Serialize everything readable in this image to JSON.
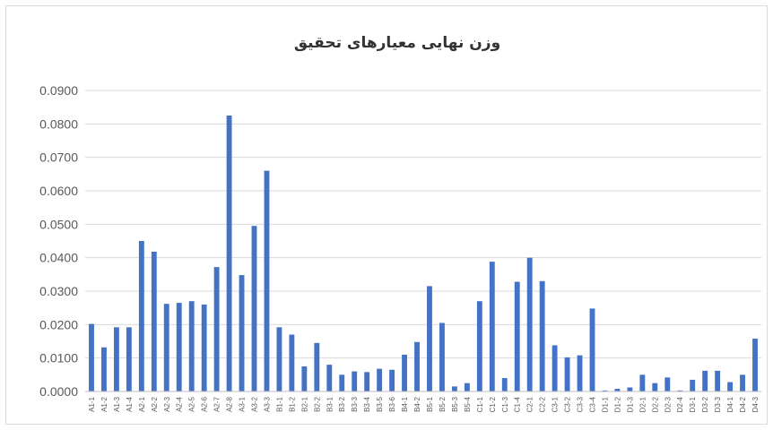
{
  "chart_data": {
    "type": "bar",
    "title": "وزن نهایی معیارهای تحقیق",
    "xlabel": "",
    "ylabel": "",
    "ylim": [
      0,
      0.09
    ],
    "yticks": [
      "0.0000",
      "0.0100",
      "0.0200",
      "0.0300",
      "0.0400",
      "0.0500",
      "0.0600",
      "0.0700",
      "0.0800",
      "0.0900"
    ],
    "grid": true,
    "bar_color": "#4472c4",
    "categories": [
      "A1-1",
      "A1-2",
      "A1-3",
      "A1-4",
      "A2-1",
      "A2-2",
      "A2-3",
      "A2-4",
      "A2-5",
      "A2-6",
      "A2-7",
      "A2-8",
      "A3-1",
      "A3-2",
      "A3-3",
      "B1-1",
      "B1-2",
      "B2-1",
      "B2-2",
      "B3-1",
      "B3-2",
      "B3-3",
      "B3-4",
      "B3-5",
      "B3-6",
      "B4-1",
      "B4-2",
      "B5-1",
      "B5-2",
      "B5-3",
      "B5-4",
      "C1-1",
      "C1-2",
      "C1-3",
      "C1-4",
      "C2-1",
      "C2-2",
      "C3-1",
      "C3-2",
      "C3-3",
      "C3-4",
      "D1-1",
      "D1-2",
      "D1-3",
      "D2-1",
      "D2-2",
      "D2-3",
      "D2-4",
      "D3-1",
      "D3-2",
      "D3-3",
      "D4-1",
      "D4-2",
      "D4-3"
    ],
    "values": [
      0.0202,
      0.0132,
      0.0192,
      0.0192,
      0.045,
      0.0418,
      0.0262,
      0.0265,
      0.027,
      0.026,
      0.0372,
      0.0825,
      0.0348,
      0.0495,
      0.066,
      0.0192,
      0.017,
      0.0075,
      0.0145,
      0.008,
      0.005,
      0.006,
      0.0058,
      0.0068,
      0.0065,
      0.011,
      0.0148,
      0.0315,
      0.0205,
      0.0015,
      0.0025,
      0.027,
      0.0388,
      0.004,
      0.0328,
      0.04,
      0.033,
      0.0138,
      0.0102,
      0.0108,
      0.0248,
      0.0003,
      0.0008,
      0.0012,
      0.005,
      0.0025,
      0.0042,
      0.0003,
      0.0035,
      0.0062,
      0.0062,
      0.0028,
      0.005,
      0.0158
    ]
  }
}
